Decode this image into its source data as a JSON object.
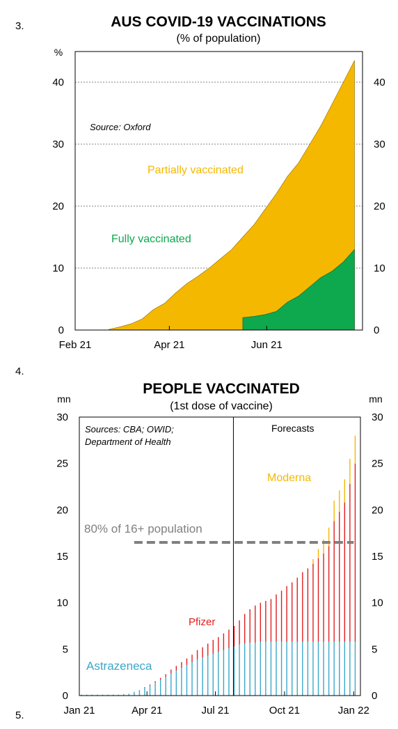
{
  "section_numbers": [
    "3.",
    "4.",
    "5."
  ],
  "colors": {
    "partial": "#F5B800",
    "fully": "#0EA84E",
    "astrazeneca": "#3BA7C9",
    "pfizer": "#E01E1E",
    "moderna": "#F5B800",
    "threshold": "#808080",
    "grid": "#808080"
  },
  "chart_data": [
    {
      "type": "area",
      "title": "AUS COVID-19 VACCINATIONS",
      "subtitle": "(% of population)",
      "unit_label": "%",
      "source": "Source: Oxford",
      "xlim": [
        "2021-02-01",
        "2021-07-31"
      ],
      "ylim": [
        0,
        40
      ],
      "y_ticks": [
        0,
        10,
        20,
        30,
        40
      ],
      "x_ticks": [
        {
          "date": "2021-02-01",
          "label": "Feb 21"
        },
        {
          "date": "2021-04-01",
          "label": "Apr 21"
        },
        {
          "date": "2021-06-01",
          "label": "Jun 21"
        }
      ],
      "grid": true,
      "series": [
        {
          "name": "Partially vaccinated",
          "x": [
            "2021-02-22",
            "2021-03-01",
            "2021-03-08",
            "2021-03-15",
            "2021-03-22",
            "2021-03-29",
            "2021-04-05",
            "2021-04-12",
            "2021-04-19",
            "2021-04-26",
            "2021-05-03",
            "2021-05-10",
            "2021-05-17",
            "2021-05-24",
            "2021-05-31",
            "2021-06-07",
            "2021-06-14",
            "2021-06-21",
            "2021-06-28",
            "2021-07-05",
            "2021-07-12",
            "2021-07-19",
            "2021-07-26"
          ],
          "values": [
            0.1,
            0.5,
            1.0,
            1.8,
            3.3,
            4.3,
            6.0,
            7.5,
            8.7,
            10.0,
            11.5,
            13.0,
            15.0,
            17.0,
            19.5,
            22.0,
            24.8,
            27.0,
            30.0,
            33.0,
            36.5,
            40.0,
            43.5
          ]
        },
        {
          "name": "Fully vaccinated",
          "x": [
            "2021-05-17",
            "2021-05-24",
            "2021-05-31",
            "2021-06-07",
            "2021-06-14",
            "2021-06-21",
            "2021-06-28",
            "2021-07-05",
            "2021-07-12",
            "2021-07-19",
            "2021-07-26"
          ],
          "values": [
            2.0,
            2.2,
            2.5,
            3.0,
            4.5,
            5.5,
            7.0,
            8.5,
            9.5,
            11.0,
            13.0
          ]
        }
      ]
    },
    {
      "type": "bar",
      "title": "PEOPLE VACCINATED",
      "subtitle": "(1st dose of vaccine)",
      "unit_label": "mn",
      "sources": [
        "Sources: CBA; OWID;",
        "Department of Health"
      ],
      "forecast_label": "Forecasts",
      "forecast_start": "2021-07-25",
      "xlim": [
        "2021-01-01",
        "2022-01-10"
      ],
      "ylim": [
        0,
        30
      ],
      "y_ticks": [
        0,
        5,
        10,
        15,
        20,
        25,
        30
      ],
      "x_ticks": [
        {
          "date": "2021-01-01",
          "label": "Jan 21"
        },
        {
          "date": "2021-04-01",
          "label": "Apr 21"
        },
        {
          "date": "2021-07-01",
          "label": "Jul 21"
        },
        {
          "date": "2021-10-01",
          "label": "Oct 21"
        },
        {
          "date": "2022-01-01",
          "label": "Jan 22"
        }
      ],
      "threshold": {
        "label": "80% of 16+ population",
        "value": 16.5,
        "from": "2021-03-15",
        "to": "2022-01-01"
      },
      "x": [
        "2021-01-04",
        "2021-01-11",
        "2021-01-18",
        "2021-01-25",
        "2021-02-01",
        "2021-02-08",
        "2021-02-15",
        "2021-02-22",
        "2021-03-01",
        "2021-03-08",
        "2021-03-15",
        "2021-03-22",
        "2021-03-29",
        "2021-04-05",
        "2021-04-12",
        "2021-04-19",
        "2021-04-26",
        "2021-05-03",
        "2021-05-10",
        "2021-05-17",
        "2021-05-24",
        "2021-05-31",
        "2021-06-07",
        "2021-06-14",
        "2021-06-21",
        "2021-06-28",
        "2021-07-05",
        "2021-07-12",
        "2021-07-19",
        "2021-07-26",
        "2021-08-02",
        "2021-08-09",
        "2021-08-16",
        "2021-08-23",
        "2021-08-30",
        "2021-09-06",
        "2021-09-13",
        "2021-09-20",
        "2021-09-27",
        "2021-10-04",
        "2021-10-11",
        "2021-10-18",
        "2021-10-25",
        "2021-11-01",
        "2021-11-08",
        "2021-11-15",
        "2021-11-22",
        "2021-11-29",
        "2021-12-06",
        "2021-12-13",
        "2021-12-20",
        "2021-12-27",
        "2022-01-03"
      ],
      "series": [
        {
          "name": "Astrazeneca",
          "values": [
            0.1,
            0.1,
            0.1,
            0.1,
            0.1,
            0.1,
            0.1,
            0.1,
            0.15,
            0.2,
            0.4,
            0.6,
            0.8,
            1.1,
            1.4,
            1.7,
            2.0,
            2.4,
            2.7,
            3.0,
            3.3,
            3.6,
            3.9,
            4.1,
            4.3,
            4.5,
            4.7,
            4.9,
            5.1,
            5.3,
            5.5,
            5.6,
            5.7,
            5.7,
            5.8,
            5.8,
            5.8,
            5.8,
            5.8,
            5.8,
            5.8,
            5.8,
            5.8,
            5.8,
            5.8,
            5.8,
            5.8,
            5.8,
            5.8,
            5.8,
            5.8,
            5.8,
            5.8
          ]
        },
        {
          "name": "Pfizer",
          "values": [
            0,
            0,
            0,
            0,
            0,
            0,
            0,
            0,
            0,
            0,
            0,
            0,
            0.1,
            0.1,
            0.15,
            0.2,
            0.3,
            0.4,
            0.5,
            0.6,
            0.7,
            0.8,
            1.0,
            1.1,
            1.3,
            1.5,
            1.6,
            1.8,
            2.0,
            2.2,
            2.6,
            3.2,
            3.6,
            4.0,
            4.2,
            4.4,
            4.6,
            5.1,
            5.5,
            6.0,
            6.4,
            6.9,
            7.5,
            7.9,
            8.4,
            9.0,
            9.5,
            10.3,
            13.0,
            14.0,
            15.0,
            17.0,
            19.2
          ]
        },
        {
          "name": "Moderna",
          "values": [
            0,
            0,
            0,
            0,
            0,
            0,
            0,
            0,
            0,
            0,
            0,
            0,
            0,
            0,
            0,
            0,
            0,
            0,
            0,
            0,
            0,
            0,
            0,
            0,
            0,
            0,
            0,
            0,
            0,
            0,
            0,
            0,
            0,
            0,
            0,
            0,
            0,
            0,
            0,
            0,
            0,
            0,
            0,
            0,
            0.5,
            1.0,
            1.5,
            2.0,
            2.2,
            2.3,
            2.5,
            2.7,
            3.0
          ]
        }
      ]
    }
  ]
}
